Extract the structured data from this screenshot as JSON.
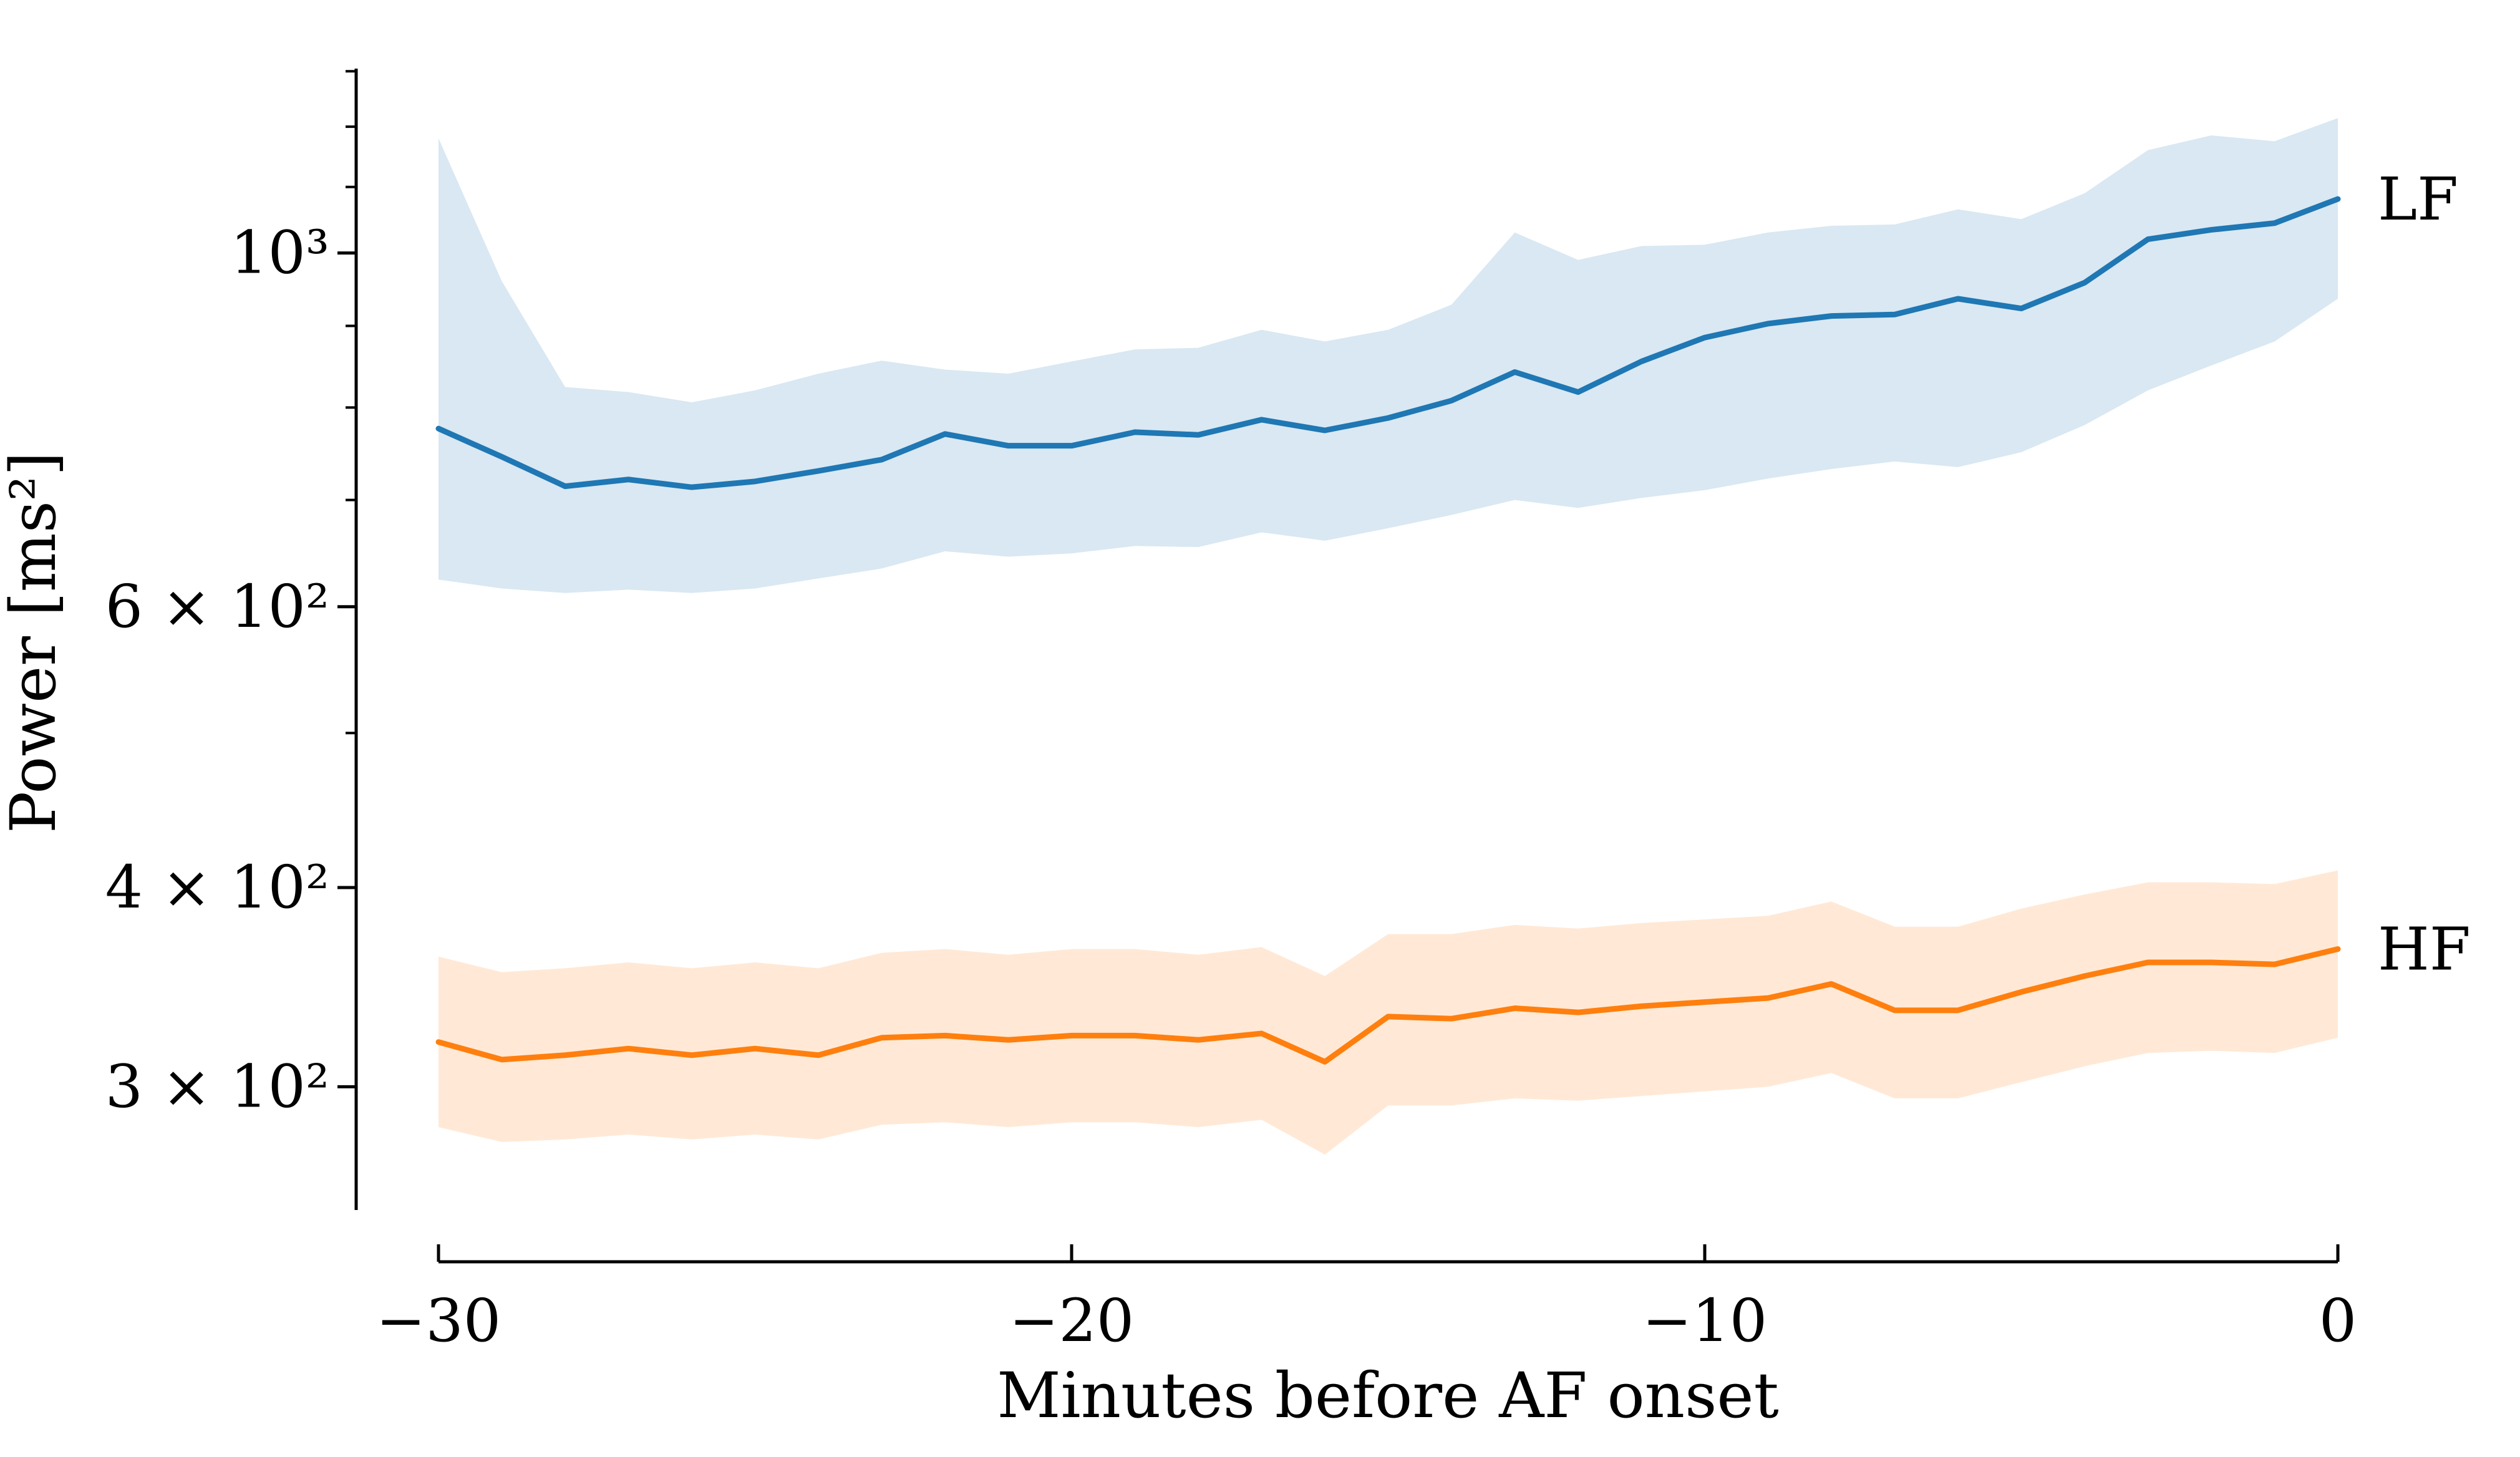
{
  "chart_data": {
    "type": "line",
    "yscale": "log",
    "grid": false,
    "legend": "none (direct series end labels)",
    "xlabel": "Minutes before AF onset",
    "ylabel": "Power [ms²]",
    "xlim": [
      -30,
      0
    ],
    "ylim": [
      233,
      1305
    ],
    "xticks": [
      -30,
      -20,
      -10,
      0
    ],
    "xtick_labels": [
      "−30",
      "−20",
      "−10",
      "0"
    ],
    "ytick_major_values": [
      1000,
      600,
      400,
      300
    ],
    "ytick_major_labels": [
      "10³",
      "6 × 10²",
      "4 × 10²",
      "3 × 10²"
    ],
    "ytick_minor_values": [
      1300,
      1200,
      1100,
      900,
      800,
      700,
      500
    ],
    "x": [
      -30,
      -29,
      -28,
      -27,
      -26,
      -25,
      -24,
      -23,
      -22,
      -21,
      -20,
      -19,
      -18,
      -17,
      -16,
      -15,
      -14,
      -13,
      -12,
      -11,
      -10,
      -9,
      -8,
      -7,
      -6,
      -5,
      -4,
      -3,
      -2,
      -1,
      0
    ],
    "series": [
      {
        "name": "LF",
        "label": "LF",
        "color": "#1f77b4",
        "band_color": "rgba(31,119,180,0.17)",
        "values": [
          776,
          745,
          714,
          721,
          713,
          719,
          730,
          742,
          770,
          757,
          757,
          772,
          769,
          786,
          774,
          788,
          808,
          842,
          818,
          855,
          885,
          903,
          913,
          915,
          936,
          923,
          958,
          1020,
          1034,
          1044,
          1081
        ],
        "band_lower": [
          624,
          616,
          612,
          615,
          612,
          616,
          625,
          634,
          650,
          645,
          648,
          655,
          654,
          668,
          660,
          672,
          685,
          700,
          692,
          702,
          710,
          722,
          732,
          740,
          734,
          750,
          780,
          820,
          850,
          880,
          936
        ],
        "band_upper": [
          1180,
          960,
          824,
          818,
          806,
          820,
          840,
          856,
          845,
          840,
          855,
          870,
          872,
          895,
          880,
          895,
          928,
          1030,
          990,
          1010,
          1012,
          1030,
          1040,
          1042,
          1065,
          1050,
          1090,
          1160,
          1185,
          1175,
          1215
        ]
      },
      {
        "name": "HF",
        "label": "HF",
        "color": "#ff7f0e",
        "band_color": "rgba(255,127,14,0.17)",
        "values": [
          320,
          312,
          314,
          317,
          314,
          317,
          314,
          322,
          323,
          321,
          323,
          323,
          321,
          324,
          311,
          332,
          331,
          336,
          334,
          337,
          339,
          341,
          348,
          335,
          335,
          344,
          352,
          359,
          359,
          358,
          366
        ],
        "band_lower": [
          283,
          277,
          278,
          280,
          278,
          280,
          278,
          284,
          285,
          283,
          285,
          285,
          283,
          286,
          272,
          292,
          292,
          295,
          294,
          296,
          298,
          300,
          306,
          295,
          295,
          302,
          309,
          315,
          316,
          315,
          322
        ],
        "band_upper": [
          362,
          354,
          356,
          359,
          356,
          359,
          356,
          364,
          366,
          363,
          366,
          366,
          363,
          367,
          352,
          374,
          374,
          379,
          377,
          380,
          382,
          384,
          392,
          378,
          378,
          388,
          396,
          403,
          403,
          402,
          410
        ]
      }
    ],
    "axis_color": "#000000"
  }
}
